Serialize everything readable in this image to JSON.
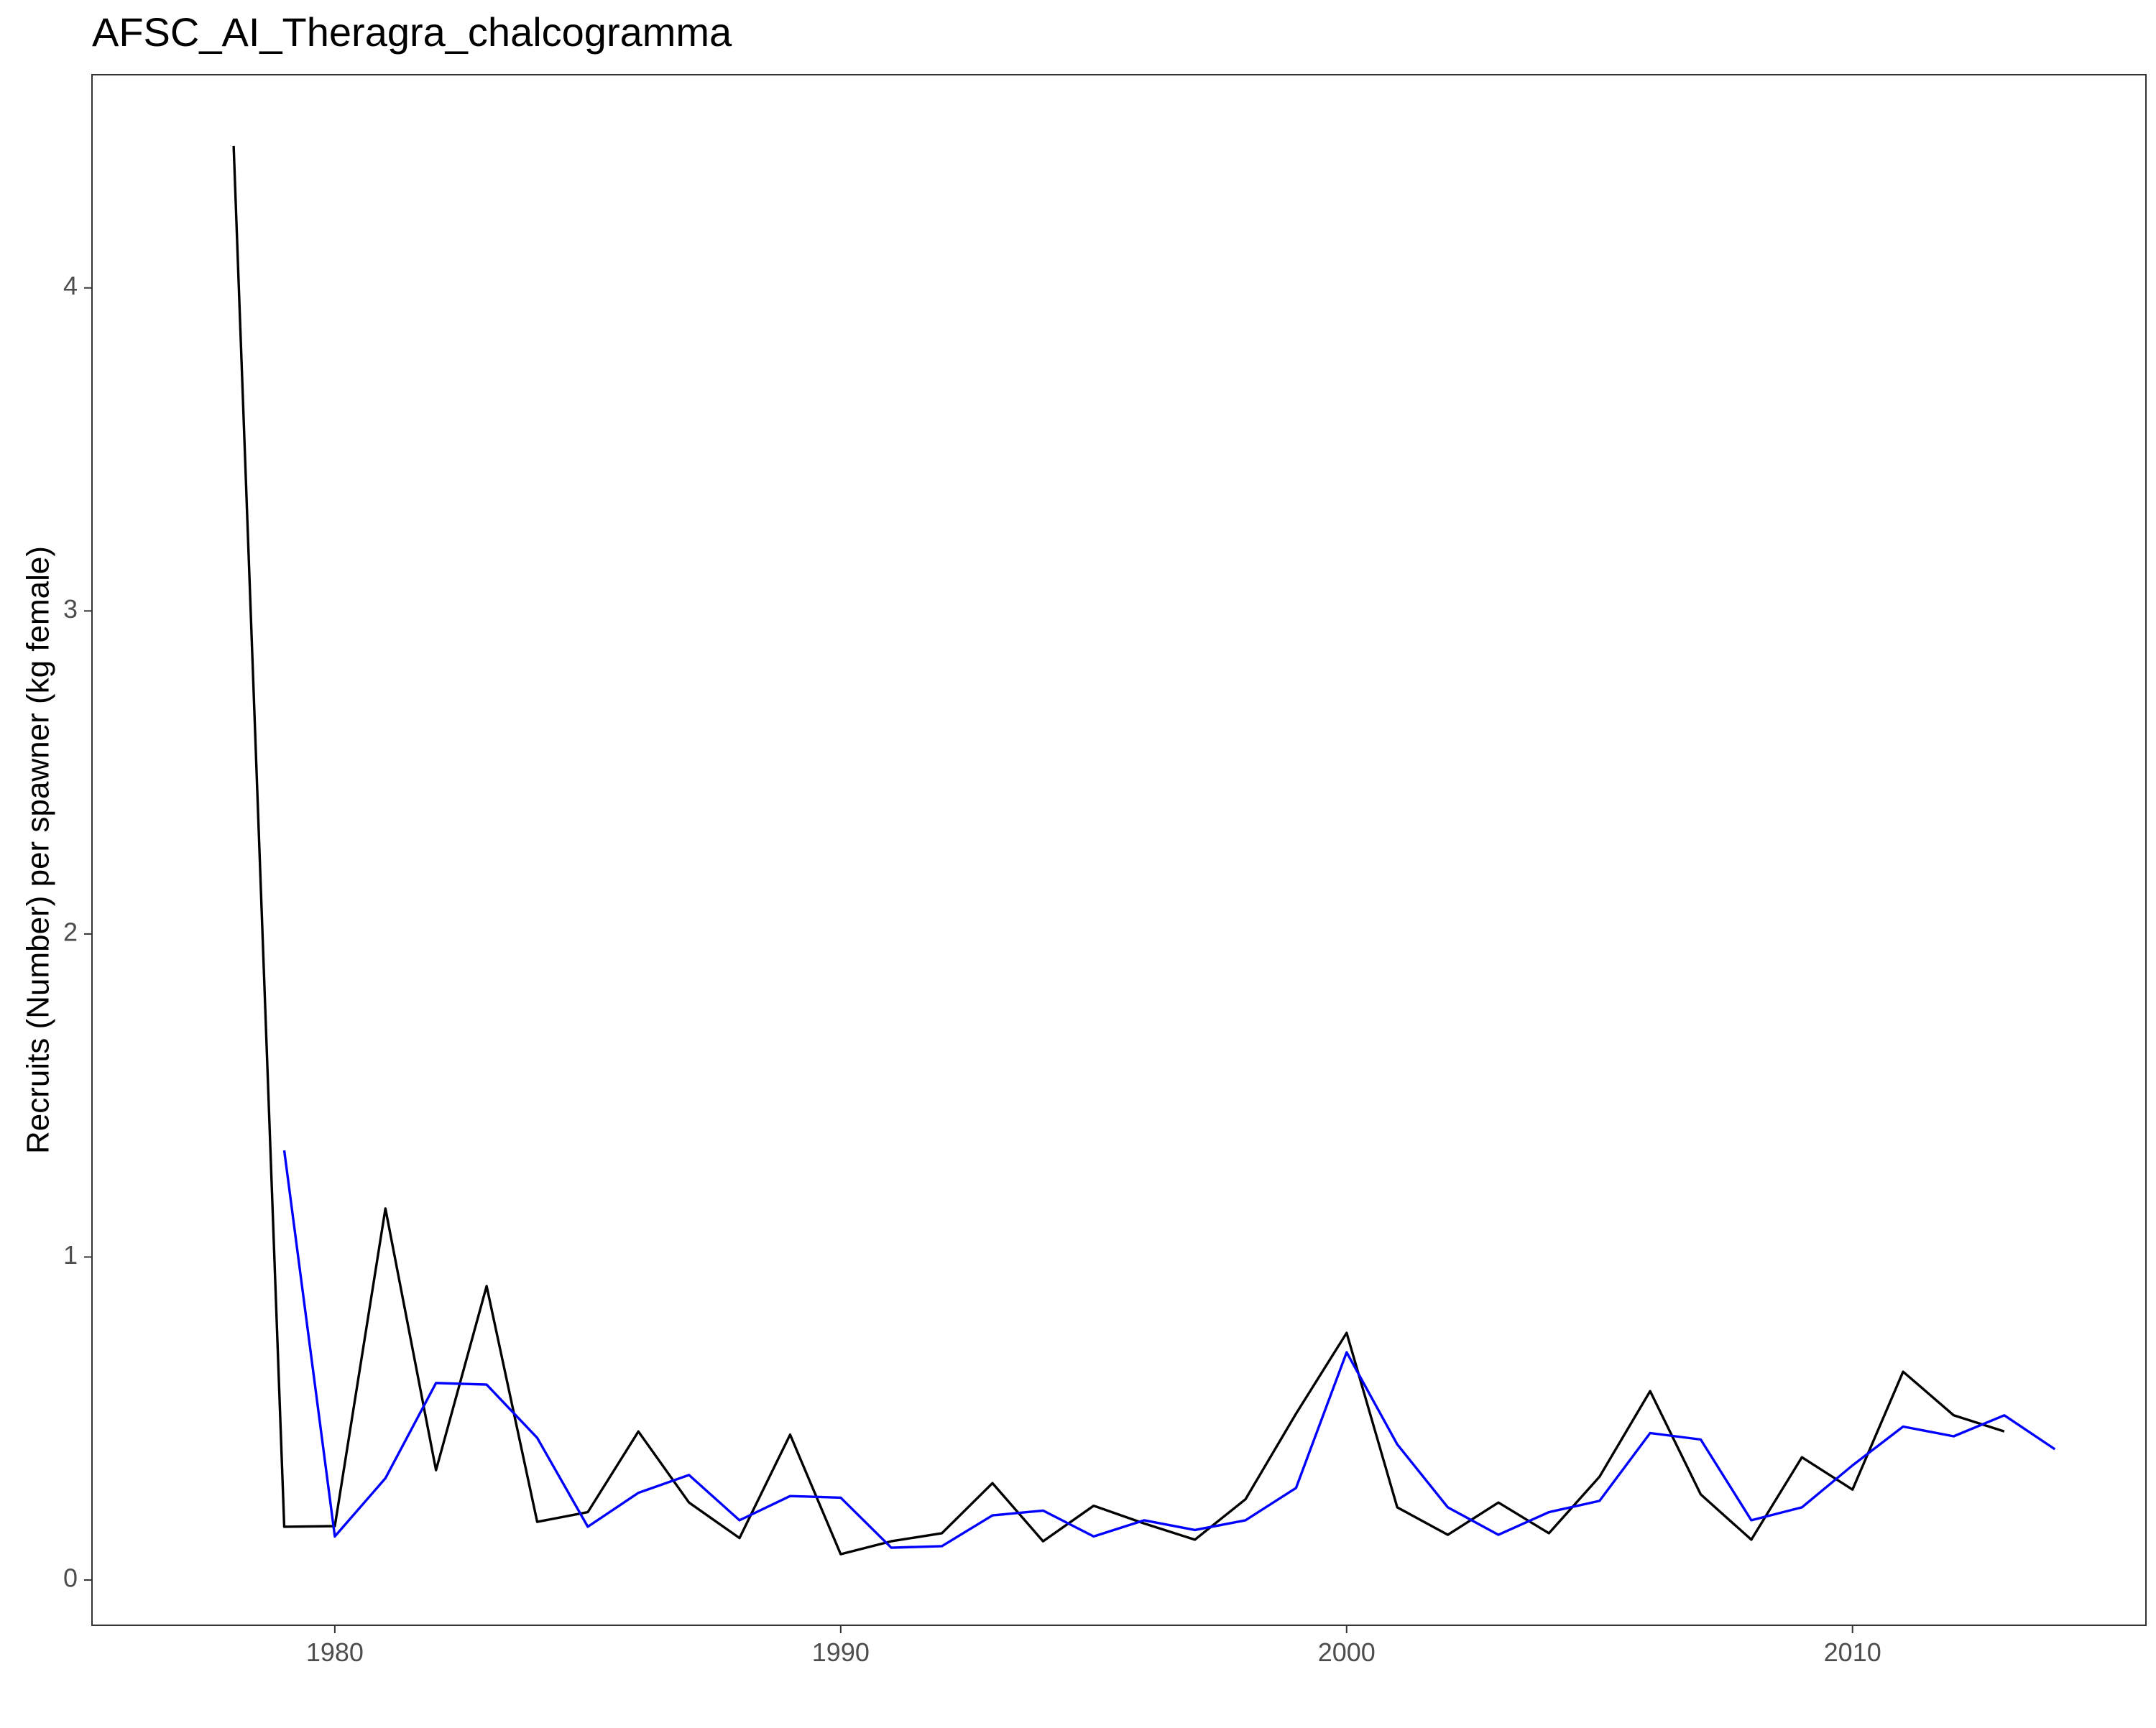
{
  "chart_data": {
    "type": "line",
    "title": "AFSC_AI_Theragra_chalcogramma",
    "xlabel": "",
    "ylabel": "Recruits (Number) per spawner (kg female)",
    "xlim": [
      1975.2,
      2015.8
    ],
    "ylim": [
      -0.14,
      4.66
    ],
    "x_ticks": [
      1980,
      1990,
      2000,
      2010
    ],
    "y_ticks": [
      0,
      1,
      2,
      3,
      4
    ],
    "grid": false,
    "legend": "none",
    "series": [
      {
        "color": "#000000",
        "points": [
          [
            1978,
            4.44
          ],
          [
            1979,
            0.165
          ],
          [
            1980,
            0.167
          ],
          [
            1981,
            1.15
          ],
          [
            1982,
            0.34
          ],
          [
            1983,
            0.91
          ],
          [
            1984,
            0.18
          ],
          [
            1985,
            0.21
          ],
          [
            1986,
            0.46
          ],
          [
            1987,
            0.24
          ],
          [
            1988,
            0.13
          ],
          [
            1989,
            0.45
          ],
          [
            1990,
            0.08
          ],
          [
            1991,
            0.12
          ],
          [
            1992,
            0.145
          ],
          [
            1993,
            0.3
          ],
          [
            1994,
            0.12
          ],
          [
            1995,
            0.23
          ],
          [
            1996,
            0.175
          ],
          [
            1997,
            0.125
          ],
          [
            1998,
            0.25
          ],
          [
            1999,
            0.515
          ],
          [
            2000,
            0.765
          ],
          [
            2001,
            0.225
          ],
          [
            2002,
            0.14
          ],
          [
            2003,
            0.24
          ],
          [
            2004,
            0.145
          ],
          [
            2005,
            0.32
          ],
          [
            2006,
            0.585
          ],
          [
            2007,
            0.265
          ],
          [
            2008,
            0.125
          ],
          [
            2009,
            0.38
          ],
          [
            2010,
            0.28
          ],
          [
            2011,
            0.645
          ],
          [
            2012,
            0.51
          ],
          [
            2013,
            0.46
          ]
        ]
      },
      {
        "color": "#0000FF",
        "points": [
          [
            1979,
            1.33
          ],
          [
            1980,
            0.135
          ],
          [
            1981,
            0.315
          ],
          [
            1982,
            0.61
          ],
          [
            1983,
            0.605
          ],
          [
            1984,
            0.44
          ],
          [
            1985,
            0.165
          ],
          [
            1986,
            0.27
          ],
          [
            1987,
            0.325
          ],
          [
            1988,
            0.185
          ],
          [
            1989,
            0.26
          ],
          [
            1990,
            0.255
          ],
          [
            1991,
            0.1
          ],
          [
            1992,
            0.105
          ],
          [
            1993,
            0.2
          ],
          [
            1994,
            0.215
          ],
          [
            1995,
            0.135
          ],
          [
            1996,
            0.185
          ],
          [
            1997,
            0.155
          ],
          [
            1998,
            0.185
          ],
          [
            1999,
            0.285
          ],
          [
            2000,
            0.705
          ],
          [
            2001,
            0.42
          ],
          [
            2002,
            0.225
          ],
          [
            2003,
            0.14
          ],
          [
            2004,
            0.21
          ],
          [
            2005,
            0.245
          ],
          [
            2006,
            0.455
          ],
          [
            2007,
            0.435
          ],
          [
            2008,
            0.185
          ],
          [
            2009,
            0.225
          ],
          [
            2010,
            0.355
          ],
          [
            2011,
            0.475
          ],
          [
            2012,
            0.445
          ],
          [
            2013,
            0.51
          ],
          [
            2014,
            0.405
          ]
        ]
      }
    ]
  }
}
